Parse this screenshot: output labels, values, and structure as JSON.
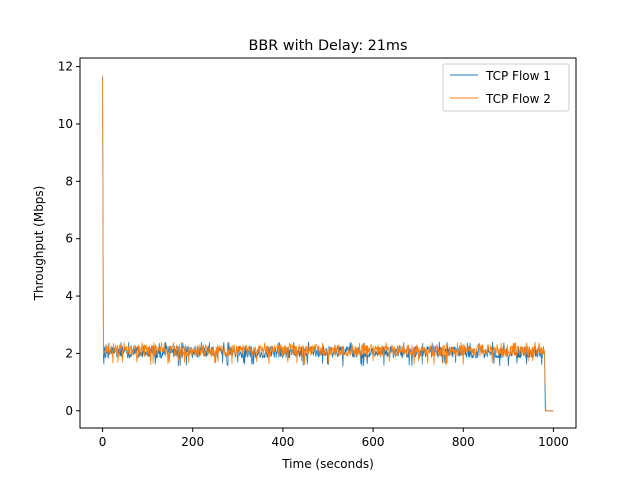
{
  "chart_data": {
    "type": "line",
    "title": "BBR with Delay: 21ms",
    "xlabel": "Time (seconds)",
    "ylabel": "Throughput (Mbps)",
    "xlim": [
      -50,
      1050
    ],
    "ylim": [
      -0.6,
      12.3
    ],
    "xticks": [
      0,
      200,
      400,
      600,
      800,
      1000
    ],
    "yticks": [
      0,
      2,
      4,
      6,
      8,
      10,
      12
    ],
    "grid": false,
    "legend_position": "top-right",
    "series": [
      {
        "name": "TCP Flow 1",
        "color": "#1f77b4",
        "start": [
          [
            0,
            11.6
          ],
          [
            2,
            1.9
          ]
        ],
        "steady": {
          "from": 2,
          "to": 980,
          "mean": 2.05,
          "min": 1.55,
          "max": 2.4
        },
        "end": [
          [
            980,
            2.05
          ],
          [
            982,
            0.0
          ],
          [
            1000,
            0.0
          ]
        ]
      },
      {
        "name": "TCP Flow 2",
        "color": "#ff7f0e",
        "start": [
          [
            0,
            11.7
          ],
          [
            2,
            1.95
          ]
        ],
        "steady": {
          "from": 2,
          "to": 980,
          "mean": 2.1,
          "min": 1.6,
          "max": 2.4
        },
        "end": [
          [
            980,
            2.1
          ],
          [
            983,
            0.0
          ],
          [
            1000,
            0.0
          ]
        ]
      }
    ]
  }
}
